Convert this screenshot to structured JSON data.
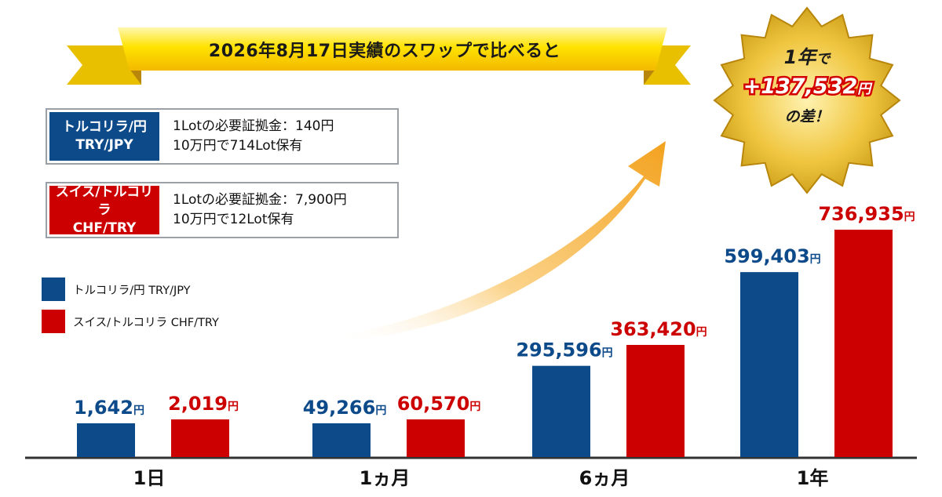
{
  "banner": {
    "title": "2026年8月17日実績のスワップで比べると"
  },
  "info_boxes": [
    {
      "label_line1": "トルコリラ/円",
      "label_line2": "TRY/JPY",
      "text_line1": "1Lotの必要証拠金：140円",
      "text_line2": "10万円で714Lot保有",
      "color": "#0d4a8a"
    },
    {
      "label_line1": "スイス/トルコリラ",
      "label_line2": "CHF/TRY",
      "text_line1": "1Lotの必要証拠金：7,900円",
      "text_line2": "10万円で12Lot保有",
      "color": "#cc0000"
    }
  ],
  "burst": {
    "line1_num": "1年",
    "line1_suffix": "で",
    "line2_num": "+137,532",
    "line2_unit": "円",
    "line3": "の差！"
  },
  "chart_data": {
    "type": "bar",
    "categories": [
      "1日",
      "1ヵ月",
      "6ヵ月",
      "1年"
    ],
    "series": [
      {
        "name": "トルコリラ/円 TRY/JPY",
        "values": [
          1642,
          49266,
          295596,
          599403
        ],
        "labels": [
          "1,642",
          "49,266",
          "295,596",
          "599,403"
        ],
        "color": "#0d4a8a"
      },
      {
        "name": "スイス/トルコリラ CHF/TRY",
        "values": [
          2019,
          60570,
          363420,
          736935
        ],
        "labels": [
          "2,019",
          "60,570",
          "363,420",
          "736,935"
        ],
        "color": "#cc0000"
      }
    ],
    "unit": "円",
    "title": "",
    "xlabel": "",
    "ylabel": "",
    "grid": false,
    "legend": "left"
  }
}
